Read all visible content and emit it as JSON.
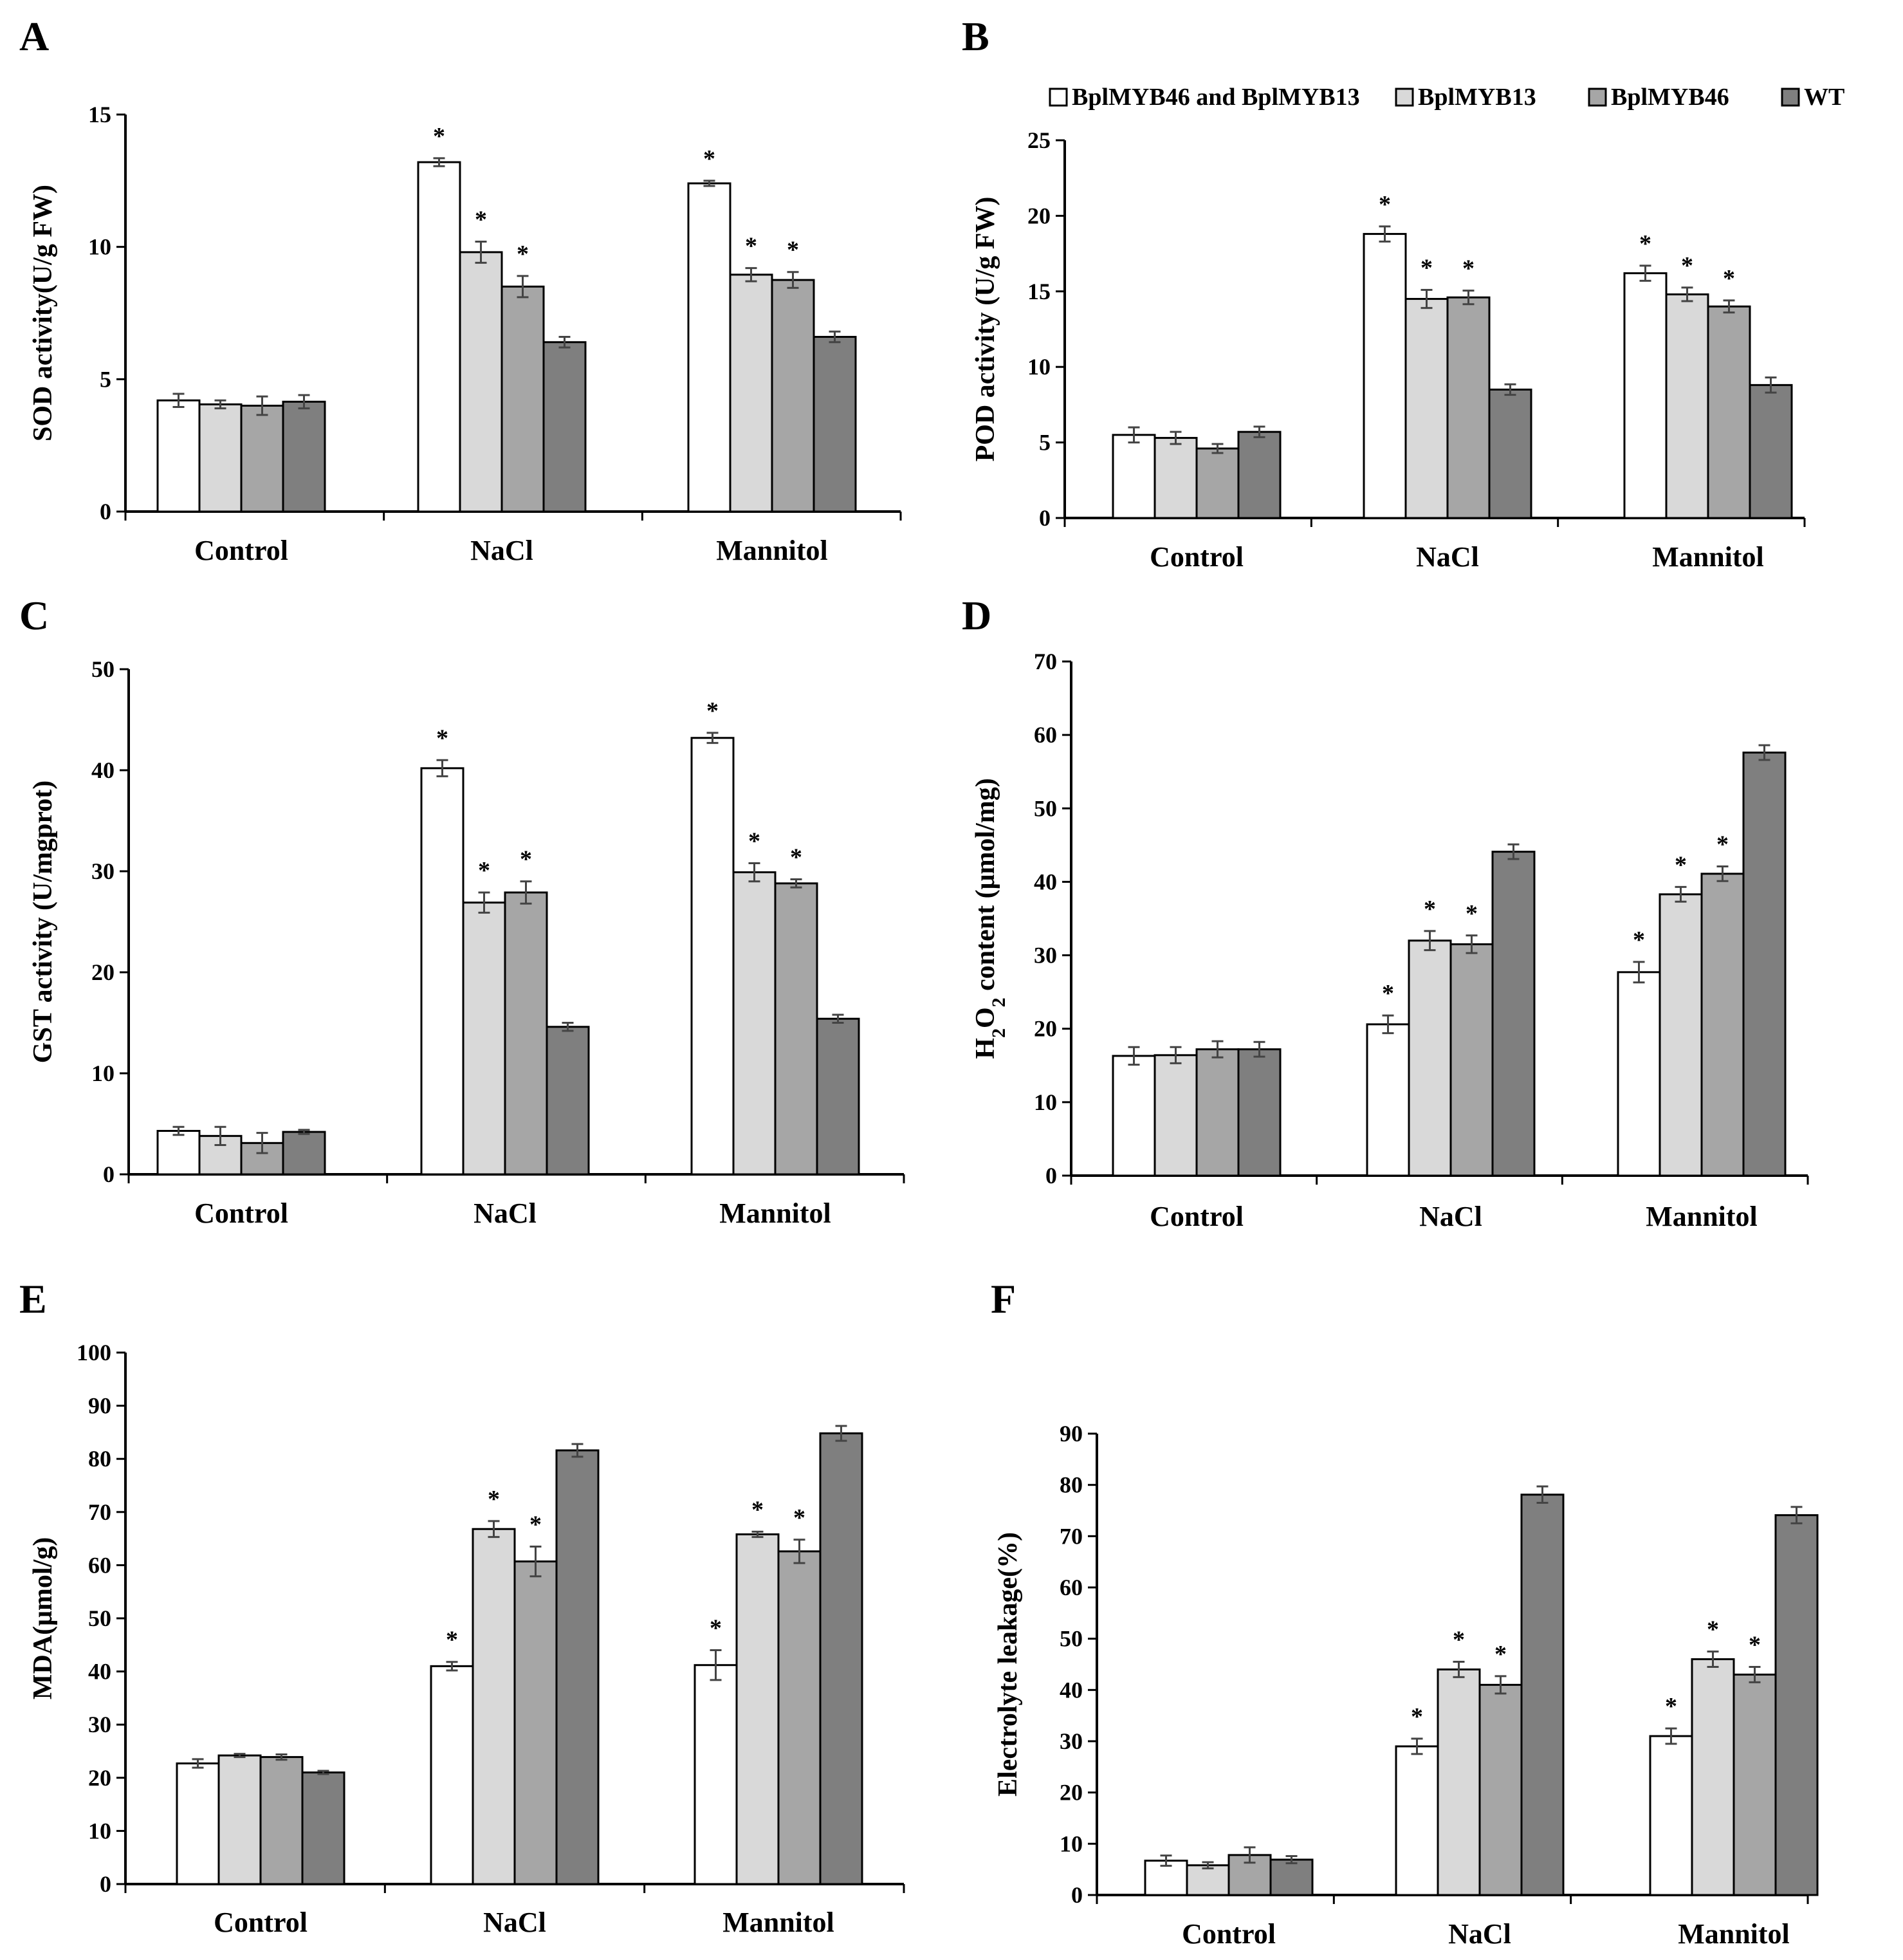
{
  "legend": {
    "entries": [
      {
        "label": "BplMYB46 and BplMYB13",
        "color": "#ffffff"
      },
      {
        "label": "BplMYB13",
        "color": "#d9d9d9"
      },
      {
        "label": "BplMYB46",
        "color": "#a6a6a6"
      },
      {
        "label": "WT",
        "color": "#7f7f7f"
      }
    ]
  },
  "chart_data": [
    {
      "type": "bar",
      "panel": "A",
      "ylabel": "SOD activity(U/g FW)",
      "ylim": [
        0,
        15
      ],
      "yticks": [
        0,
        5,
        10,
        15
      ],
      "categories": [
        "Control",
        "NaCl",
        "Mannitol"
      ],
      "series": [
        {
          "name": "BplMYB46 and BplMYB13",
          "values": [
            4.2,
            13.2,
            12.4
          ],
          "errors": [
            0.25,
            0.15,
            0.1
          ],
          "sig": [
            false,
            true,
            true
          ]
        },
        {
          "name": "BplMYB13",
          "values": [
            4.05,
            9.8,
            8.95
          ],
          "errors": [
            0.15,
            0.4,
            0.25
          ],
          "sig": [
            false,
            true,
            true
          ]
        },
        {
          "name": "BplMYB46",
          "values": [
            4.0,
            8.5,
            8.75
          ],
          "errors": [
            0.35,
            0.4,
            0.3
          ],
          "sig": [
            false,
            true,
            true
          ]
        },
        {
          "name": "WT",
          "values": [
            4.15,
            6.4,
            6.6
          ],
          "errors": [
            0.25,
            0.2,
            0.2
          ],
          "sig": [
            false,
            false,
            false
          ]
        }
      ]
    },
    {
      "type": "bar",
      "panel": "B",
      "ylabel": "POD activity (U/g FW)",
      "ylim": [
        0,
        25
      ],
      "yticks": [
        0,
        5,
        10,
        15,
        20,
        25
      ],
      "categories": [
        "Control",
        "NaCl",
        "Mannitol"
      ],
      "series": [
        {
          "name": "BplMYB46 and BplMYB13",
          "values": [
            5.5,
            18.8,
            16.2
          ],
          "errors": [
            0.5,
            0.5,
            0.5
          ],
          "sig": [
            false,
            true,
            true
          ]
        },
        {
          "name": "BplMYB13",
          "values": [
            5.3,
            14.5,
            14.8
          ],
          "errors": [
            0.4,
            0.6,
            0.45
          ],
          "sig": [
            false,
            true,
            true
          ]
        },
        {
          "name": "BplMYB46",
          "values": [
            4.6,
            14.6,
            14.0
          ],
          "errors": [
            0.3,
            0.45,
            0.4
          ],
          "sig": [
            false,
            true,
            true
          ]
        },
        {
          "name": "WT",
          "values": [
            5.7,
            8.5,
            8.8
          ],
          "errors": [
            0.35,
            0.35,
            0.5
          ],
          "sig": [
            false,
            false,
            false
          ]
        }
      ]
    },
    {
      "type": "bar",
      "panel": "C",
      "ylabel": "GST activity (U/mgprot)",
      "ylim": [
        0,
        50
      ],
      "yticks": [
        0,
        10,
        20,
        30,
        40,
        50
      ],
      "categories": [
        "Control",
        "NaCl",
        "Mannitol"
      ],
      "series": [
        {
          "name": "BplMYB46 and BplMYB13",
          "values": [
            4.3,
            40.2,
            43.2
          ],
          "errors": [
            0.4,
            0.8,
            0.5
          ],
          "sig": [
            false,
            true,
            true
          ]
        },
        {
          "name": "BplMYB13",
          "values": [
            3.8,
            26.9,
            29.9
          ],
          "errors": [
            0.9,
            1.0,
            0.9
          ],
          "sig": [
            false,
            true,
            true
          ]
        },
        {
          "name": "BplMYB46",
          "values": [
            3.1,
            27.9,
            28.8
          ],
          "errors": [
            1.0,
            1.1,
            0.4
          ],
          "sig": [
            false,
            true,
            true
          ]
        },
        {
          "name": "WT",
          "values": [
            4.2,
            14.6,
            15.4
          ],
          "errors": [
            0.2,
            0.4,
            0.4
          ],
          "sig": [
            false,
            false,
            false
          ]
        }
      ]
    },
    {
      "type": "bar",
      "panel": "D",
      "ylabel": "H2O2 content (μmol/mg)",
      "ylabel_parts": {
        "pre": "H",
        "sub1": "2",
        "mid": "O",
        "sub2": "2",
        "post": " content (μmol/mg)"
      },
      "ylim": [
        0,
        70
      ],
      "yticks": [
        0,
        10,
        20,
        30,
        40,
        50,
        60,
        70
      ],
      "categories": [
        "Control",
        "NaCl",
        "Mannitol"
      ],
      "series": [
        {
          "name": "BplMYB46 and BplMYB13",
          "values": [
            16.3,
            20.6,
            27.7
          ],
          "errors": [
            1.2,
            1.2,
            1.4
          ],
          "sig": [
            false,
            true,
            true
          ]
        },
        {
          "name": "BplMYB13",
          "values": [
            16.4,
            32.0,
            38.3
          ],
          "errors": [
            1.1,
            1.3,
            1.0
          ],
          "sig": [
            false,
            true,
            true
          ]
        },
        {
          "name": "BplMYB46",
          "values": [
            17.2,
            31.5,
            41.1
          ],
          "errors": [
            1.1,
            1.2,
            1.0
          ],
          "sig": [
            false,
            true,
            true
          ]
        },
        {
          "name": "WT",
          "values": [
            17.2,
            44.1,
            57.6
          ],
          "errors": [
            1.0,
            1.0,
            1.0
          ],
          "sig": [
            false,
            false,
            false
          ]
        }
      ]
    },
    {
      "type": "bar",
      "panel": "E",
      "ylabel": "MDA(μmol/g)",
      "ylim": [
        0,
        100
      ],
      "yticks": [
        0,
        10,
        20,
        30,
        40,
        50,
        60,
        70,
        80,
        90,
        100
      ],
      "categories": [
        "Control",
        "NaCl",
        "Mannitol"
      ],
      "series": [
        {
          "name": "BplMYB46 and BplMYB13",
          "values": [
            22.7,
            41.0,
            41.2
          ],
          "errors": [
            0.8,
            0.8,
            2.8
          ],
          "sig": [
            false,
            true,
            true
          ]
        },
        {
          "name": "BplMYB13",
          "values": [
            24.2,
            66.8,
            65.8
          ],
          "errors": [
            0.3,
            1.5,
            0.5
          ],
          "sig": [
            false,
            true,
            true
          ]
        },
        {
          "name": "BplMYB46",
          "values": [
            23.9,
            60.7,
            62.6
          ],
          "errors": [
            0.5,
            2.8,
            2.2
          ],
          "sig": [
            false,
            true,
            true
          ]
        },
        {
          "name": "WT",
          "values": [
            21.0,
            81.6,
            84.8
          ],
          "errors": [
            0.3,
            1.2,
            1.4
          ],
          "sig": [
            false,
            false,
            false
          ]
        }
      ]
    },
    {
      "type": "bar",
      "panel": "F",
      "ylabel": "Electrolyte leakage(%)",
      "ylim": [
        0,
        90
      ],
      "yticks": [
        0,
        10,
        20,
        30,
        40,
        50,
        60,
        70,
        80,
        90
      ],
      "categories": [
        "Control",
        "NaCl",
        "Mannitol"
      ],
      "series": [
        {
          "name": "BplMYB46 and BplMYB13",
          "values": [
            6.7,
            29.0,
            31.0
          ],
          "errors": [
            1.0,
            1.5,
            1.5
          ],
          "sig": [
            false,
            true,
            true
          ]
        },
        {
          "name": "BplMYB13",
          "values": [
            5.8,
            44.0,
            46.0
          ],
          "errors": [
            0.6,
            1.5,
            1.5
          ],
          "sig": [
            false,
            true,
            true
          ]
        },
        {
          "name": "BplMYB46",
          "values": [
            7.8,
            41.0,
            43.0
          ],
          "errors": [
            1.5,
            1.7,
            1.5
          ],
          "sig": [
            false,
            true,
            true
          ]
        },
        {
          "name": "WT",
          "values": [
            6.9,
            78.1,
            74.1
          ],
          "errors": [
            0.7,
            1.6,
            1.6
          ],
          "sig": [
            false,
            false,
            false
          ]
        }
      ]
    }
  ]
}
